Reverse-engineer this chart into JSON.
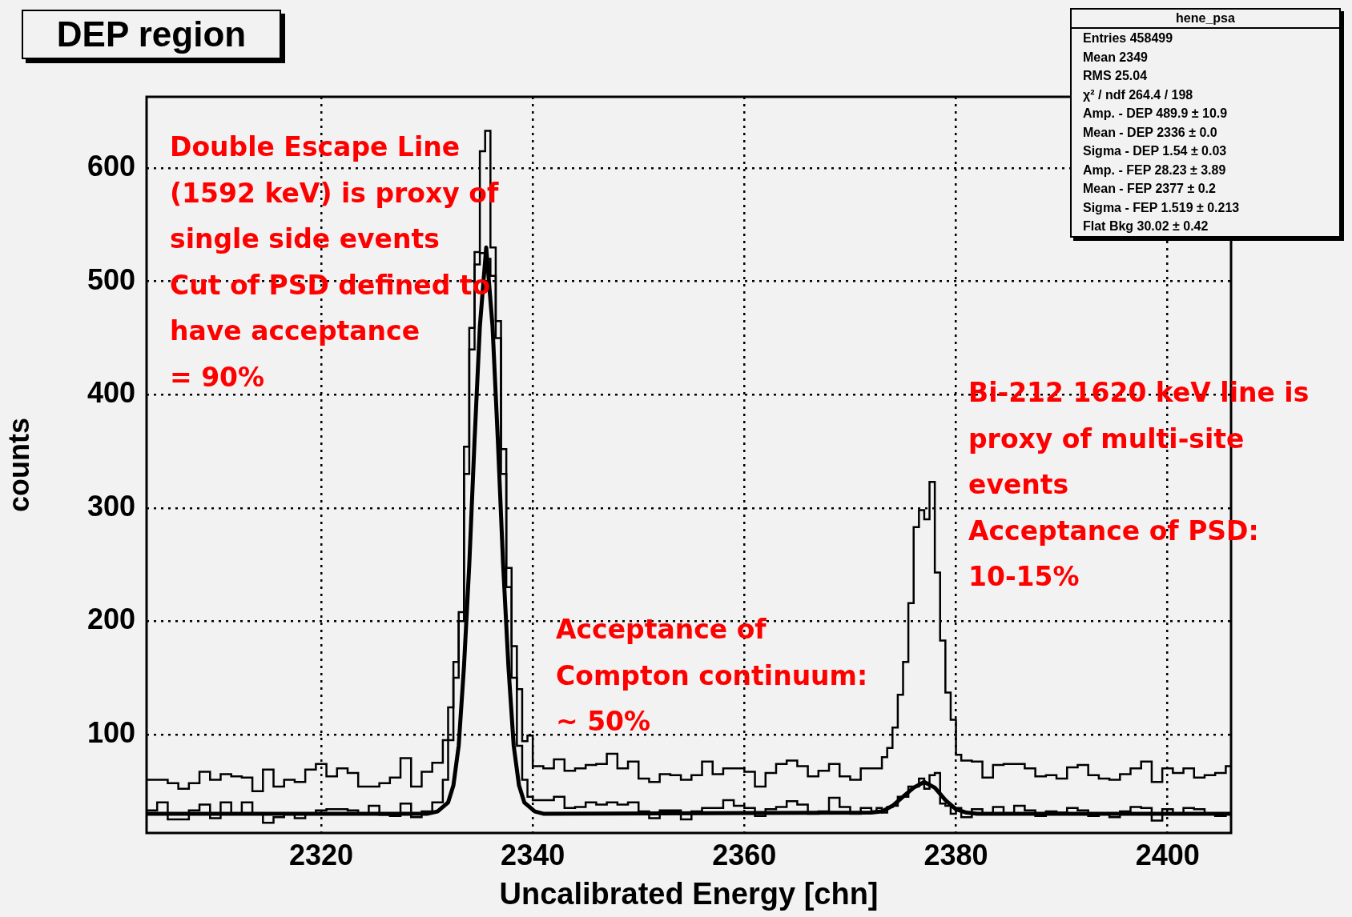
{
  "chart_data": {
    "type": "step",
    "title": "DEP region",
    "xlabel": "Uncalibrated Energy [chn]",
    "ylabel": "counts",
    "xlim": [
      2303.5,
      2406
    ],
    "ylim": [
      13,
      663
    ],
    "xticks": [
      2320,
      2340,
      2360,
      2380,
      2400
    ],
    "yticks": [
      100,
      200,
      300,
      400,
      500,
      600
    ],
    "grid": true,
    "x": [
      2303.5,
      2304.5,
      2305.5,
      2306.5,
      2307.5,
      2308.5,
      2309.5,
      2310.5,
      2311.5,
      2312.5,
      2313.5,
      2314.5,
      2315.5,
      2316.5,
      2317.5,
      2318.5,
      2319.5,
      2320.5,
      2321.5,
      2322.5,
      2323.5,
      2324.5,
      2325.5,
      2326.5,
      2327.5,
      2328.5,
      2329.5,
      2330.5,
      2331.5,
      2332,
      2332.5,
      2333,
      2333.5,
      2334,
      2334.5,
      2335,
      2335.5,
      2336,
      2336.5,
      2337,
      2337.5,
      2338,
      2338.5,
      2339,
      2339.5,
      2340,
      2341,
      2342,
      2343,
      2344,
      2345,
      2346,
      2347,
      2348,
      2349,
      2350,
      2351,
      2352,
      2353,
      2354,
      2355,
      2356,
      2357,
      2358,
      2359,
      2360,
      2361,
      2362,
      2363,
      2364,
      2365,
      2366,
      2367,
      2368,
      2369,
      2370,
      2371,
      2372,
      2372.5,
      2373,
      2373.5,
      2374,
      2374.5,
      2375,
      2375.5,
      2376,
      2376.5,
      2377,
      2377.5,
      2378,
      2378.5,
      2379,
      2379.5,
      2380,
      2380.5,
      2381.5,
      2382.5,
      2383.5,
      2384.5,
      2385.5,
      2386.5,
      2387.5,
      2388.5,
      2389.5,
      2390.5,
      2391.5,
      2392.5,
      2393.5,
      2394.5,
      2395.5,
      2396.5,
      2397.5,
      2398.5,
      2399.5,
      2400.5,
      2401.5,
      2402.5,
      2403.5,
      2404.5,
      2405.5,
      2406
    ],
    "series": [
      {
        "color": "#000000",
        "values": [
          60,
          60,
          57,
          52,
          57,
          67,
          60,
          65,
          63,
          62,
          50,
          69,
          54,
          60,
          58,
          69,
          74,
          63,
          70,
          66,
          54,
          54,
          57,
          62,
          79,
          54,
          67,
          75,
          95,
          124,
          164,
          208,
          354,
          459,
          526,
          615,
          633,
          530,
          465,
          352,
          247,
          178,
          140,
          94,
          99,
          72,
          70,
          78,
          68,
          70,
          73,
          74,
          83,
          70,
          76,
          61,
          58,
          65,
          64,
          60,
          64,
          76,
          65,
          70,
          70,
          67,
          54,
          66,
          74,
          77,
          72,
          63,
          68,
          74,
          63,
          60,
          70,
          70,
          70,
          80,
          88,
          106,
          135,
          164,
          216,
          283,
          298,
          290,
          323,
          243,
          183,
          137,
          113,
          82,
          77,
          76,
          62,
          73,
          74,
          74,
          70,
          63,
          64,
          61,
          71,
          73,
          64,
          61,
          60,
          65,
          70,
          76,
          58,
          70,
          66,
          70,
          62,
          64,
          66,
          72,
          72
        ]
      },
      {
        "color": "#000000",
        "values": [
          33,
          40,
          25,
          25,
          33,
          38,
          26,
          40,
          30,
          40,
          30,
          22,
          27,
          30,
          26,
          30,
          33,
          34,
          34,
          33,
          30,
          37,
          29,
          28,
          39,
          27,
          32,
          40,
          60,
          95,
          150,
          200,
          330,
          440,
          515,
          525,
          520,
          505,
          450,
          330,
          230,
          150,
          90,
          60,
          45,
          42,
          42,
          45,
          35,
          36,
          40,
          38,
          40,
          38,
          40,
          32,
          26,
          33,
          33,
          25,
          32,
          35,
          35,
          42,
          37,
          35,
          28,
          34,
          36,
          41,
          38,
          30,
          32,
          44,
          36,
          30,
          35,
          32,
          35,
          31,
          36,
          37,
          45,
          45,
          54,
          54,
          61,
          52,
          64,
          66,
          39,
          37,
          30,
          35,
          27,
          34,
          30,
          36,
          30,
          37,
          33,
          28,
          32,
          31,
          35,
          33,
          28,
          30,
          27,
          32,
          36,
          35,
          24,
          34,
          30,
          35,
          34,
          30,
          28,
          30,
          30
        ]
      },
      {
        "type": "line",
        "color": "#000000",
        "x": [
          2303.5,
          2330,
          2331,
          2332,
          2332.5,
          2333,
          2333.5,
          2334,
          2334.5,
          2335,
          2335.6,
          2336.2,
          2336.7,
          2337.2,
          2337.7,
          2338.2,
          2338.7,
          2339.2,
          2340.2,
          2341,
          2372,
          2373,
          2374,
          2375,
          2376,
          2377,
          2378,
          2379,
          2380,
          2381,
          2382,
          2406
        ],
        "values": [
          30,
          30,
          32,
          40,
          55,
          90,
          160,
          250,
          360,
          460,
          530,
          460,
          360,
          250,
          160,
          90,
          55,
          40,
          32,
          30,
          31,
          32,
          37,
          45,
          53,
          58,
          53,
          42,
          34,
          31,
          30,
          30
        ]
      }
    ],
    "annotations": [
      "Double Escape Line\n(1592 keV) is proxy of\nsingle side events\nCut of PSD defined to\nhave acceptance\n= 90%",
      "Acceptance of\nCompton continuum:\n~ 50%",
      "Bi-212 1620 keV line is\nproxy of multi-site\nevents\nAcceptance of PSD:\n10-15%",
      "hene_psa",
      "Entries 458499",
      "Mean 2349",
      "RMS 25.04",
      "χ² / ndf 264.4 / 198",
      "Amp. - DEP 489.9 ± 10.9",
      "Mean - DEP 2336 ± 0.0",
      "Sigma - DEP 1.54 ± 0.03",
      "Amp. - FEP 28.23 ± 3.89",
      "Mean - FEP 2377 ± 0.2",
      "Sigma - FEP 1.519 ± 0.213",
      "Flat Bkg 30.02 ± 0.42"
    ]
  }
}
